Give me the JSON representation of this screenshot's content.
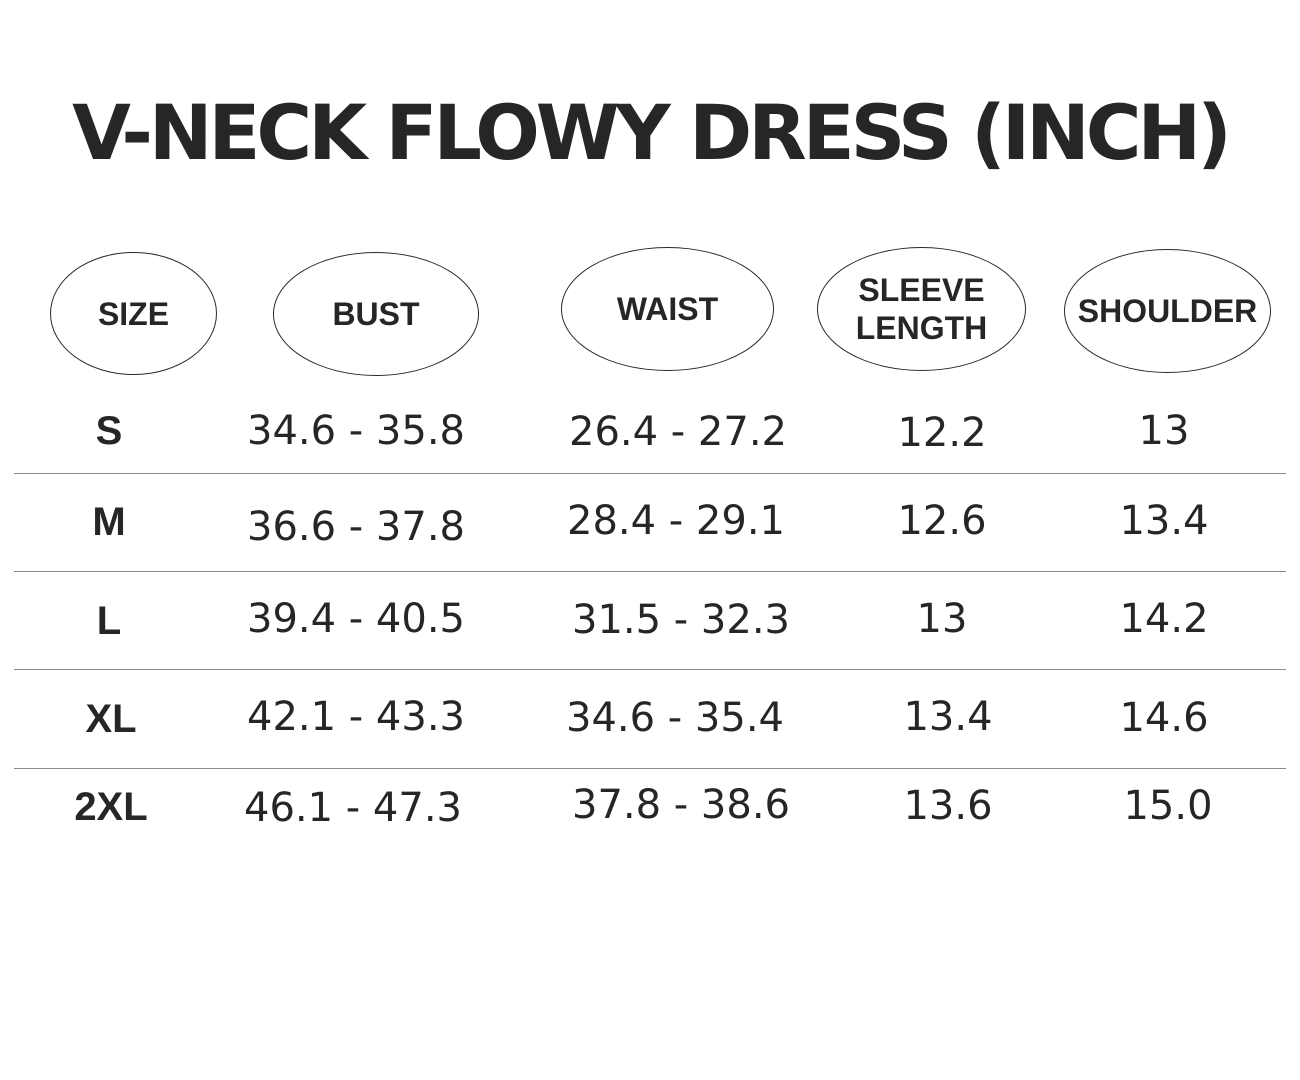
{
  "title": "V-NECK FLOWY DRESS (INCH)",
  "headers": {
    "size": "SIZE",
    "bust": "BUST",
    "waist": "WAIST",
    "sleeve_length": "SLEEVE\nLENGTH",
    "shoulder": "SHOULDER"
  },
  "rows": [
    {
      "size": "S",
      "bust": "34.6 - 35.8",
      "waist": "26.4 - 27.2",
      "sleeve": "12.2",
      "shoulder": "13"
    },
    {
      "size": "M",
      "bust": "36.6 - 37.8",
      "waist": "28.4 - 29.1",
      "sleeve": "12.6",
      "shoulder": "13.4"
    },
    {
      "size": "L",
      "bust": "39.4 - 40.5",
      "waist": "31.5 - 32.3",
      "sleeve": "13",
      "shoulder": "14.2"
    },
    {
      "size": "XL",
      "bust": "42.1 - 43.3",
      "waist": "34.6 - 35.4",
      "sleeve": "13.4",
      "shoulder": "14.6"
    },
    {
      "size": "2XL",
      "bust": "46.1 - 47.3",
      "waist": "37.8 - 38.6",
      "sleeve": "13.6",
      "shoulder": "15.0"
    }
  ]
}
